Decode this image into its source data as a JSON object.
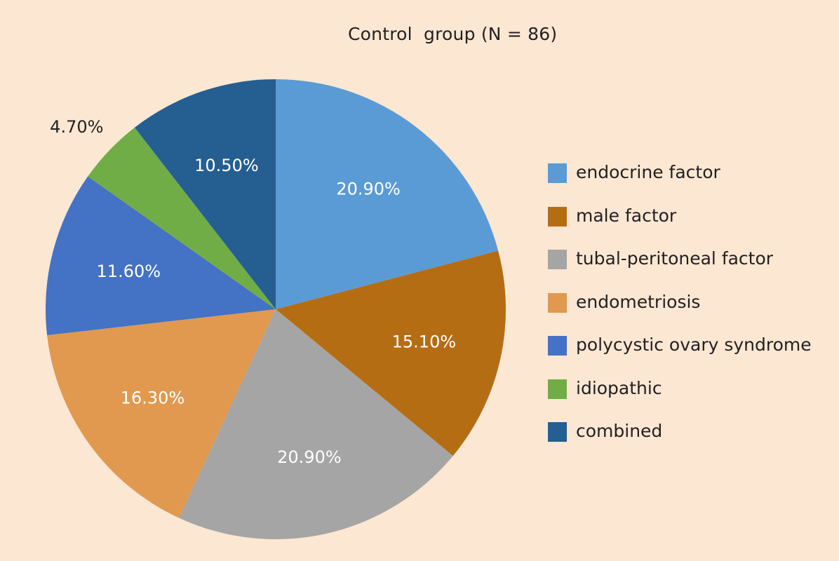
{
  "background_color": "#fce7d3",
  "chart_data": {
    "type": "pie",
    "title": "Control  group (N = 86)",
    "unit": "%",
    "legend_position": "right",
    "slices": [
      {
        "label": "endocrine factor",
        "value": 20.9,
        "display": "20.90%",
        "color": "#5b9bd5",
        "label_color": "#ffffff",
        "label_placement": "inside"
      },
      {
        "label": "male factor",
        "value": 15.1,
        "display": "15.10%",
        "color": "#b56d14",
        "label_color": "#ffffff",
        "label_placement": "inside"
      },
      {
        "label": "tubal-peritoneal factor",
        "value": 20.9,
        "display": "20.90%",
        "color": "#a5a5a5",
        "label_color": "#ffffff",
        "label_placement": "inside"
      },
      {
        "label": "endometriosis",
        "value": 16.3,
        "display": "16.30%",
        "color": "#e0994f",
        "label_color": "#ffffff",
        "label_placement": "inside"
      },
      {
        "label": "polycystic ovary syndrome",
        "value": 11.6,
        "display": "11.60%",
        "color": "#4472c4",
        "label_color": "#ffffff",
        "label_placement": "inside"
      },
      {
        "label": "idiopathic",
        "value": 4.7,
        "display": "4.70%",
        "color": "#70ad47",
        "label_color": "#231f20",
        "label_placement": "outside"
      },
      {
        "label": "combined",
        "value": 10.5,
        "display": "10.50%",
        "color": "#255e91",
        "label_color": "#ffffff",
        "label_placement": "inside"
      }
    ]
  }
}
